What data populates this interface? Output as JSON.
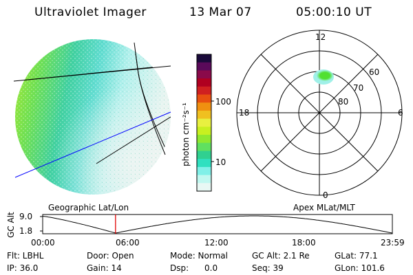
{
  "header": {
    "instrument": "Ultraviolet Imager",
    "date": "13 Mar 07",
    "time": "05:00:10 UT"
  },
  "colorbar": {
    "unit_label": "photon cm⁻²s⁻¹",
    "ticks": [
      "100",
      "10"
    ],
    "colors": [
      "#1a0a3a",
      "#5a0a5a",
      "#8a0a4a",
      "#b00020",
      "#d02020",
      "#e85010",
      "#f09010",
      "#f0c020",
      "#e8f040",
      "#c8f020",
      "#90e830",
      "#60e060",
      "#30d090",
      "#30e0c0",
      "#80f0e8",
      "#c0f8f0",
      "#e8f8f4"
    ]
  },
  "left_panel": {
    "label": "Geographic Lat/Lon"
  },
  "right_panel": {
    "label": "Apex MLat/MLT",
    "mlt_labels": [
      "12",
      "6",
      "0",
      "18"
    ],
    "lat_labels": [
      "60",
      "70",
      "80"
    ]
  },
  "altitude_plot": {
    "ylabel": "GC Alt",
    "yticks": [
      "9.0",
      "1.8"
    ],
    "xticks": [
      "00:00",
      "06:00",
      "12:00",
      "18:00",
      "23:59"
    ],
    "marker_time_hours": 5.0
  },
  "info": {
    "flt": "Flt: LBHL",
    "door": "Door: Open",
    "mode": "Mode: Normal",
    "gc_alt": "GC Alt: 2.1 Re",
    "glat": "GLat:  77.1",
    "ip": "IP: 36.0",
    "gain": "Gain: 14",
    "dsp": "Dsp:      0.0",
    "seq": "Seq: 39",
    "glon": "GLon: 101.6"
  },
  "colors": {
    "grid_line": "#000000",
    "blue_line": "#0000ff",
    "marker": "#e00000",
    "aurora_green": "#50e030",
    "aurora_cyan": "#a0f0e8"
  }
}
